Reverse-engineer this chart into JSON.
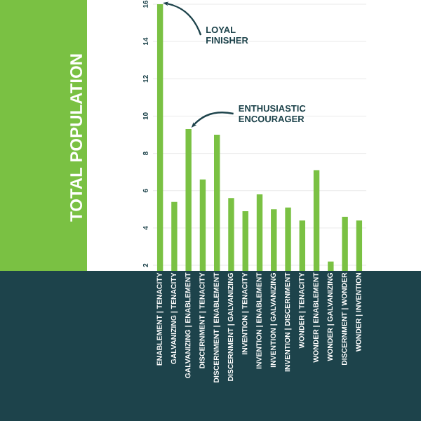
{
  "chart_data": {
    "type": "bar",
    "ylabel": "TOTAL POPULATION",
    "categories": [
      "ENABLEMENT | TENACITY",
      "GALVANIZING | TENACITY",
      "GALVANIZING | ENABLEMENT",
      "DISCERNMENT | TENACITY",
      "DISCERNMENT | ENABLEMENT",
      "DISCERNMENT | GALVANIZING",
      "INVENTION | TENACITY",
      "INVENTION | ENABLEMENT",
      "INVENTION | GALVANIZING",
      "INVENTION | DISCERNMENT",
      "WONDER | TENACITY",
      "WONDER | ENABLEMENT",
      "WONDER | GALVANIZING",
      "DISCERNMENT | WONDER",
      "WONDER | INVENTION"
    ],
    "values": [
      16.0,
      5.4,
      9.3,
      6.6,
      9.0,
      5.6,
      4.9,
      5.8,
      5.0,
      5.1,
      4.4,
      7.1,
      2.2,
      4.6,
      4.4
    ],
    "color": "#7ac143",
    "ylim": [
      1.7,
      16
    ],
    "yticks": [
      2,
      4,
      6,
      8,
      10,
      12,
      14,
      16
    ],
    "grid": "y",
    "annotations": [
      {
        "text": "LOYAL FINISHER",
        "x": "ENABLEMENT | TENACITY",
        "y": 16.0
      },
      {
        "text": "ENTHUSIASTIC ENCOURAGER",
        "x": "GALVANIZING | ENABLEMENT",
        "y": 9.3
      }
    ]
  }
}
